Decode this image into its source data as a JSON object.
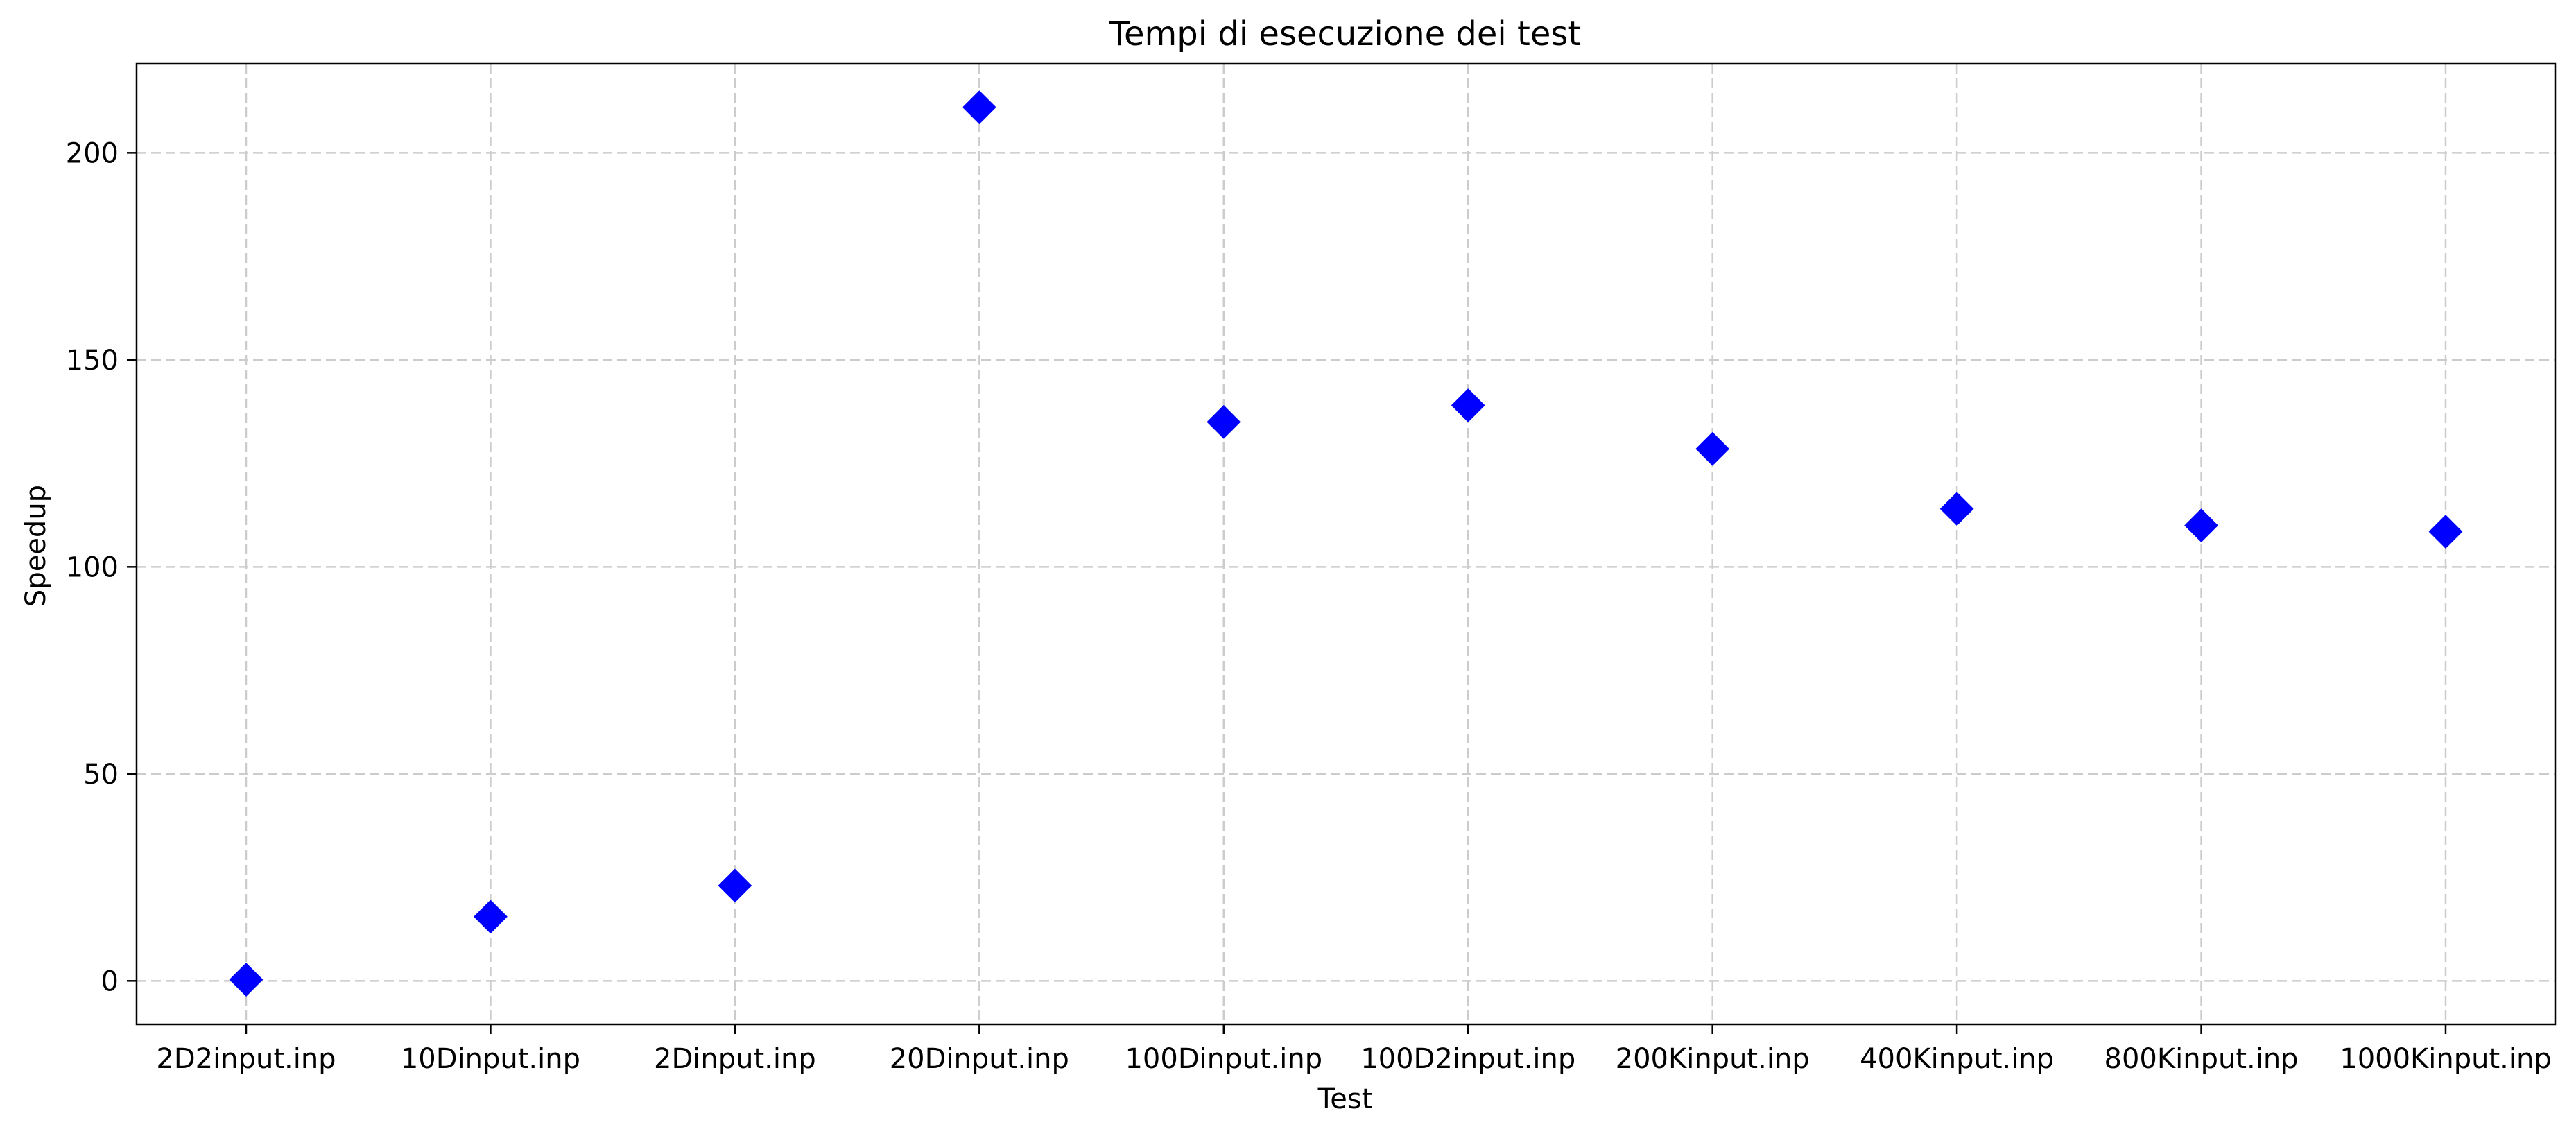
{
  "chart_data": {
    "type": "scatter",
    "title": "Tempi di esecuzione dei test",
    "xlabel": "Test",
    "ylabel": "Speedup",
    "categories": [
      "2D2input.inp",
      "10Dinput.inp",
      "2Dinput.inp",
      "20Dinput.inp",
      "100Dinput.inp",
      "100D2input.inp",
      "200Kinput.inp",
      "400Kinput.inp",
      "800Kinput.inp",
      "1000Kinput.inp"
    ],
    "values": [
      0.3,
      15.5,
      23,
      211,
      135,
      139,
      128.5,
      114,
      110,
      108.5
    ],
    "ylim": [
      -10.5,
      221.5
    ],
    "yticks": [
      0,
      50,
      100,
      150,
      200
    ],
    "grid": true,
    "marker": "diamond",
    "color": "#0000ff"
  }
}
